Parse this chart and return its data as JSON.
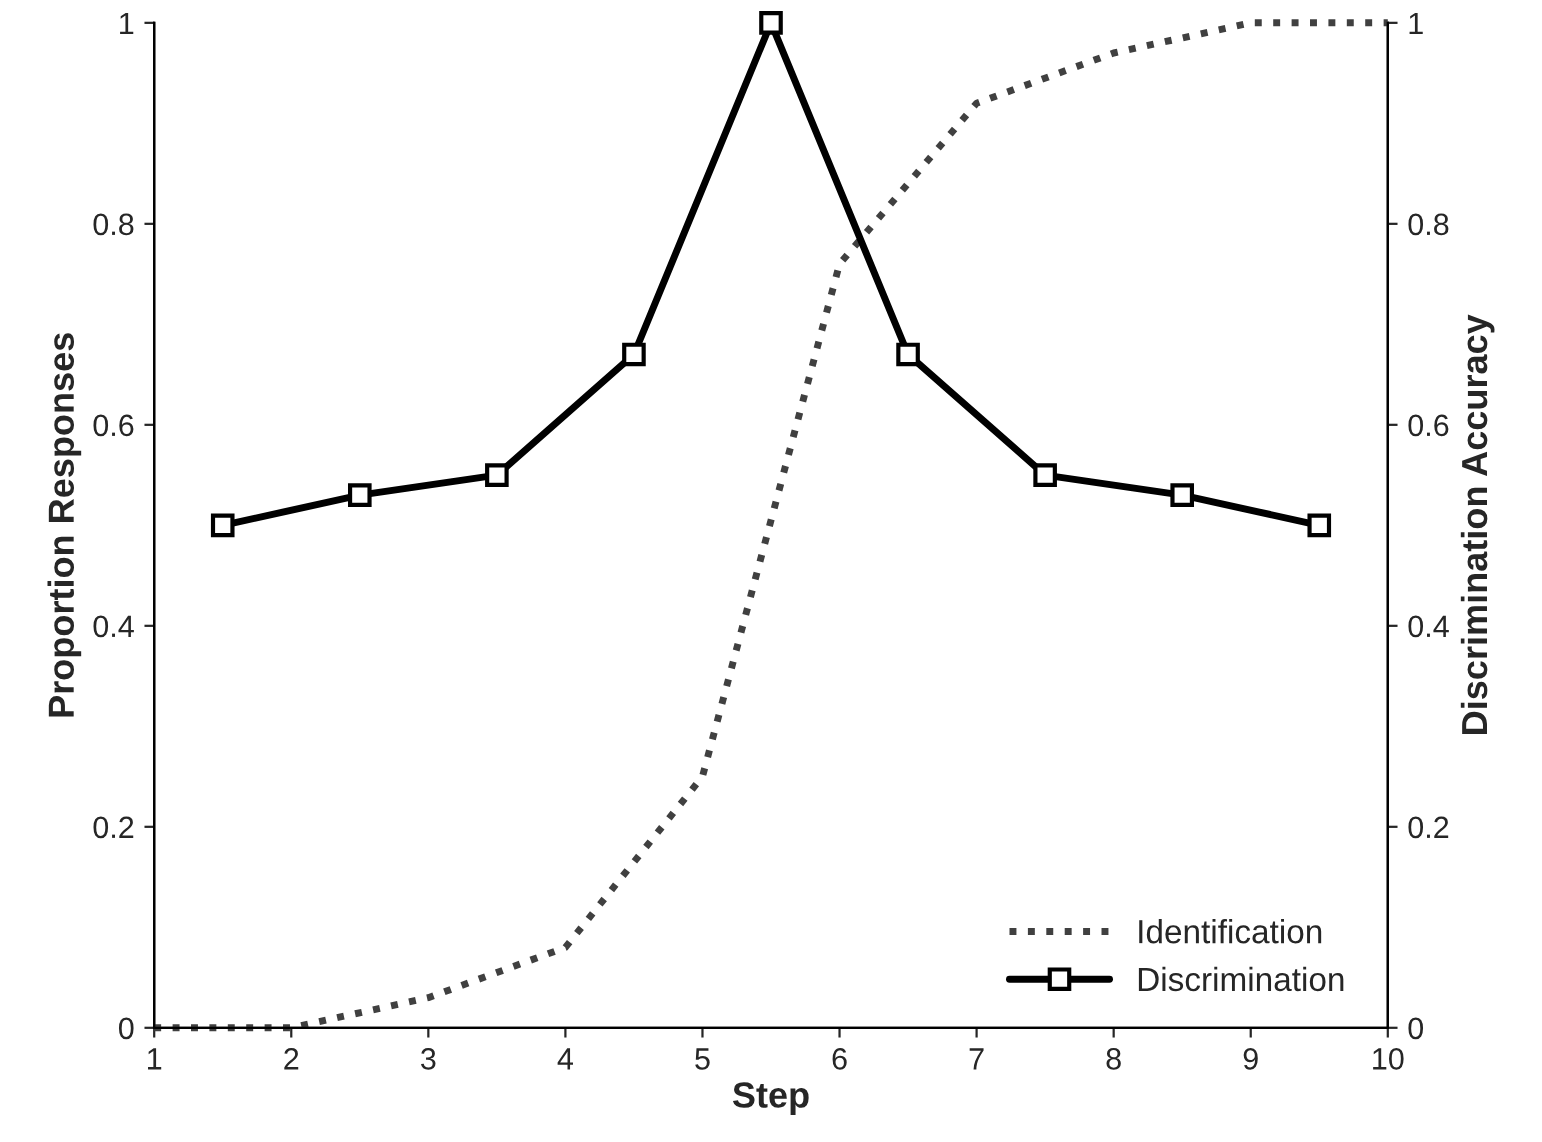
{
  "chart_data": {
    "type": "line",
    "xlabel": "Step",
    "ylabel": "Proportion Responses",
    "y2label": "Discrimination Accuracy",
    "series": [
      {
        "name": "Identification",
        "color": "#404040",
        "line_style": "dotted",
        "marker": "none",
        "x": [
          1,
          2,
          3,
          4,
          5,
          6,
          7,
          8,
          9,
          10
        ],
        "values": [
          0,
          0,
          0.03,
          0.08,
          0.25,
          0.76,
          0.92,
          0.97,
          1.0,
          1.0
        ]
      },
      {
        "name": "Discrimination",
        "color": "#000000",
        "line_style": "solid",
        "marker": "square",
        "x": [
          1.5,
          2.5,
          3.5,
          4.5,
          5.5,
          6.5,
          7.5,
          8.5,
          9.5
        ],
        "values": [
          0.5,
          0.53,
          0.55,
          0.67,
          1.0,
          0.67,
          0.55,
          0.53,
          0.5
        ]
      }
    ],
    "xlim": [
      1,
      10
    ],
    "xticks": [
      1,
      2,
      3,
      4,
      5,
      6,
      7,
      8,
      9,
      10
    ],
    "ylim": [
      0,
      1
    ],
    "yticks": [
      0,
      0.2,
      0.4,
      0.6,
      0.8,
      1
    ],
    "y2lim": [
      0,
      1
    ],
    "y2ticks": [
      0,
      0.2,
      0.4,
      0.6,
      0.8,
      1
    ],
    "grid": false,
    "legend": "bottom right"
  }
}
